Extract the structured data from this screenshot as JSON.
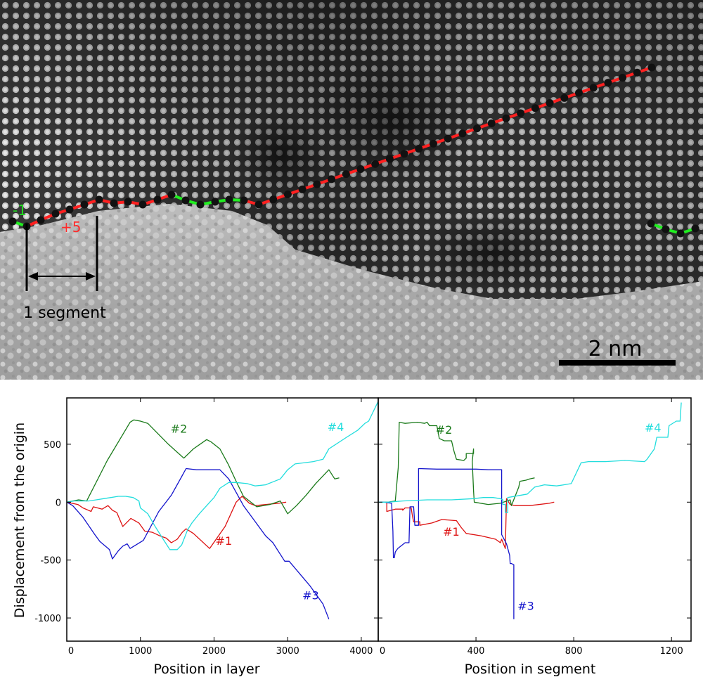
{
  "micrograph": {
    "segment_label": "1 segment",
    "scale_bar_label": "2 nm",
    "step_labels": [
      {
        "text": "-1",
        "color": "#22dd22"
      },
      {
        "text": "+5",
        "color": "#ff2a2a"
      }
    ],
    "palette": {
      "up_step": "#ff2020",
      "down_step": "#20ee20",
      "atom": "#111111"
    }
  },
  "chart_data": [
    {
      "type": "line",
      "xlabel": "Position in layer",
      "ylabel": "Displacement from the origin",
      "xlim": [
        0,
        4230
      ],
      "ylim": [
        -1200,
        900
      ],
      "xticks": [
        0,
        1000,
        2000,
        3000,
        4000
      ],
      "yticks": [
        500,
        0,
        -500,
        -1000
      ],
      "grid": false,
      "series": [
        {
          "name": "#1",
          "color": "#dd1111",
          "points": [
            [
              0,
              0
            ],
            [
              150,
              -20
            ],
            [
              220,
              -50
            ],
            [
              330,
              -80
            ],
            [
              360,
              -40
            ],
            [
              480,
              -60
            ],
            [
              560,
              -30
            ],
            [
              620,
              -70
            ],
            [
              680,
              -90
            ],
            [
              760,
              -210
            ],
            [
              870,
              -140
            ],
            [
              980,
              -180
            ],
            [
              1060,
              -250
            ],
            [
              1160,
              -260
            ],
            [
              1260,
              -290
            ],
            [
              1350,
              -310
            ],
            [
              1420,
              -350
            ],
            [
              1500,
              -320
            ],
            [
              1570,
              -260
            ],
            [
              1620,
              -230
            ],
            [
              1720,
              -270
            ],
            [
              1940,
              -400
            ],
            [
              2150,
              -210
            ],
            [
              2300,
              0
            ],
            [
              2380,
              50
            ],
            [
              2480,
              -10
            ],
            [
              2560,
              -30
            ],
            [
              2700,
              -20
            ],
            [
              2880,
              -10
            ],
            [
              2980,
              0
            ]
          ]
        },
        {
          "name": "#2",
          "color": "#1a7a1a",
          "points": [
            [
              0,
              0
            ],
            [
              160,
              20
            ],
            [
              270,
              10
            ],
            [
              550,
              360
            ],
            [
              860,
              690
            ],
            [
              910,
              710
            ],
            [
              1000,
              700
            ],
            [
              1100,
              680
            ],
            [
              1380,
              500
            ],
            [
              1590,
              380
            ],
            [
              1720,
              460
            ],
            [
              1900,
              540
            ],
            [
              1960,
              520
            ],
            [
              2080,
              460
            ],
            [
              2190,
              330
            ],
            [
              2300,
              180
            ],
            [
              2400,
              50
            ],
            [
              2580,
              -40
            ],
            [
              2760,
              -20
            ],
            [
              2900,
              10
            ],
            [
              3000,
              -100
            ],
            [
              3120,
              -30
            ],
            [
              3250,
              60
            ],
            [
              3380,
              160
            ],
            [
              3560,
              280
            ],
            [
              3640,
              200
            ],
            [
              3700,
              210
            ]
          ]
        },
        {
          "name": "#3",
          "color": "#1414cc",
          "points": [
            [
              0,
              0
            ],
            [
              80,
              -30
            ],
            [
              220,
              -130
            ],
            [
              380,
              -280
            ],
            [
              450,
              -340
            ],
            [
              580,
              -410
            ],
            [
              620,
              -490
            ],
            [
              700,
              -420
            ],
            [
              760,
              -380
            ],
            [
              820,
              -360
            ],
            [
              860,
              -400
            ],
            [
              1040,
              -330
            ],
            [
              1250,
              -80
            ],
            [
              1420,
              60
            ],
            [
              1560,
              220
            ],
            [
              1620,
              290
            ],
            [
              1760,
              280
            ],
            [
              2080,
              280
            ],
            [
              2200,
              200
            ],
            [
              2400,
              -30
            ],
            [
              2700,
              -290
            ],
            [
              2800,
              -350
            ],
            [
              2960,
              -510
            ],
            [
              3020,
              -510
            ],
            [
              3180,
              -630
            ],
            [
              3300,
              -720
            ],
            [
              3480,
              -880
            ],
            [
              3560,
              -1010
            ]
          ]
        },
        {
          "name": "#4",
          "color": "#22dddd",
          "points": [
            [
              0,
              0
            ],
            [
              100,
              10
            ],
            [
              200,
              10
            ],
            [
              300,
              10
            ],
            [
              400,
              20
            ],
            [
              500,
              30
            ],
            [
              600,
              40
            ],
            [
              700,
              50
            ],
            [
              800,
              50
            ],
            [
              900,
              40
            ],
            [
              980,
              10
            ],
            [
              1000,
              -50
            ],
            [
              1100,
              -100
            ],
            [
              1200,
              -210
            ],
            [
              1300,
              -310
            ],
            [
              1400,
              -410
            ],
            [
              1500,
              -410
            ],
            [
              1560,
              -370
            ],
            [
              1640,
              -240
            ],
            [
              1700,
              -180
            ],
            [
              1800,
              -100
            ],
            [
              1900,
              -30
            ],
            [
              2000,
              40
            ],
            [
              2080,
              120
            ],
            [
              2200,
              170
            ],
            [
              2300,
              170
            ],
            [
              2450,
              160
            ],
            [
              2560,
              140
            ],
            [
              2700,
              150
            ],
            [
              2900,
              200
            ],
            [
              3000,
              280
            ],
            [
              3100,
              330
            ],
            [
              3350,
              350
            ],
            [
              3480,
              370
            ],
            [
              3560,
              460
            ],
            [
              3800,
              560
            ],
            [
              3950,
              620
            ],
            [
              4050,
              680
            ],
            [
              4100,
              700
            ],
            [
              4230,
              870
            ]
          ]
        }
      ],
      "annotations": [
        {
          "text": "#2",
          "x": 1410,
          "y": 600,
          "color": "#1a7a1a"
        },
        {
          "text": "#4",
          "x": 3540,
          "y": 615,
          "color": "#22dddd"
        },
        {
          "text": "#1",
          "x": 2020,
          "y": -370,
          "color": "#dd1111"
        },
        {
          "text": "#3",
          "x": 3200,
          "y": -840,
          "color": "#1414cc"
        }
      ]
    },
    {
      "type": "line",
      "xlabel": "Position in segment",
      "ylabel": "",
      "xlim": [
        0,
        1280
      ],
      "ylim": [
        -1200,
        900
      ],
      "xticks": [
        0,
        400,
        800,
        1200
      ],
      "yticks": [
        500,
        0,
        -500,
        -1000
      ],
      "grid": false,
      "series": [
        {
          "name": "#1",
          "color": "#dd1111",
          "points": [
            [
              0,
              0
            ],
            [
              35,
              0
            ],
            [
              35,
              -80
            ],
            [
              70,
              -60
            ],
            [
              100,
              -60
            ],
            [
              100,
              -70
            ],
            [
              110,
              -50
            ],
            [
              135,
              -50
            ],
            [
              140,
              -120
            ],
            [
              145,
              -170
            ],
            [
              170,
              -170
            ],
            [
              170,
              -200
            ],
            [
              220,
              -180
            ],
            [
              260,
              -150
            ],
            [
              320,
              -160
            ],
            [
              340,
              -220
            ],
            [
              360,
              -270
            ],
            [
              420,
              -290
            ],
            [
              480,
              -320
            ],
            [
              500,
              -350
            ],
            [
              505,
              -320
            ],
            [
              520,
              -400
            ],
            [
              525,
              30
            ],
            [
              540,
              -20
            ],
            [
              560,
              -30
            ],
            [
              620,
              -30
            ],
            [
              700,
              -10
            ],
            [
              720,
              0
            ],
            [
              720,
              0
            ]
          ]
        },
        {
          "name": "#2",
          "color": "#1a7a1a",
          "points": [
            [
              0,
              0
            ],
            [
              40,
              0
            ],
            [
              70,
              10
            ],
            [
              82,
              300
            ],
            [
              86,
              690
            ],
            [
              110,
              680
            ],
            [
              160,
              690
            ],
            [
              190,
              680
            ],
            [
              200,
              690
            ],
            [
              210,
              660
            ],
            [
              240,
              660
            ],
            [
              250,
              550
            ],
            [
              270,
              530
            ],
            [
              300,
              530
            ],
            [
              310,
              440
            ],
            [
              320,
              370
            ],
            [
              350,
              360
            ],
            [
              360,
              380
            ],
            [
              360,
              420
            ],
            [
              390,
              420
            ],
            [
              390,
              460
            ],
            [
              385,
              350
            ],
            [
              390,
              100
            ],
            [
              393,
              0
            ],
            [
              450,
              -20
            ],
            [
              500,
              -10
            ],
            [
              540,
              20
            ],
            [
              545,
              -30
            ],
            [
              575,
              130
            ],
            [
              580,
              180
            ],
            [
              605,
              190
            ],
            [
              620,
              200
            ],
            [
              640,
              210
            ]
          ]
        },
        {
          "name": "#3",
          "color": "#1414cc",
          "points": [
            [
              0,
              0
            ],
            [
              25,
              0
            ],
            [
              55,
              -10
            ],
            [
              60,
              -250
            ],
            [
              62,
              -480
            ],
            [
              66,
              -480
            ],
            [
              70,
              -430
            ],
            [
              80,
              -400
            ],
            [
              110,
              -350
            ],
            [
              126,
              -350
            ],
            [
              130,
              -40
            ],
            [
              145,
              -40
            ],
            [
              150,
              -200
            ],
            [
              165,
              -200
            ],
            [
              165,
              290
            ],
            [
              240,
              285
            ],
            [
              300,
              285
            ],
            [
              400,
              285
            ],
            [
              450,
              280
            ],
            [
              500,
              280
            ],
            [
              505,
              280
            ],
            [
              505,
              -280
            ],
            [
              525,
              -360
            ],
            [
              538,
              -460
            ],
            [
              540,
              -530
            ],
            [
              545,
              -530
            ],
            [
              555,
              -540
            ],
            [
              555,
              -1010
            ]
          ]
        },
        {
          "name": "#4",
          "color": "#22dddd",
          "points": [
            [
              0,
              0
            ],
            [
              40,
              0
            ],
            [
              100,
              10
            ],
            [
              200,
              20
            ],
            [
              300,
              20
            ],
            [
              390,
              30
            ],
            [
              430,
              40
            ],
            [
              470,
              40
            ],
            [
              500,
              30
            ],
            [
              510,
              20
            ],
            [
              510,
              -20
            ],
            [
              520,
              -20
            ],
            [
              520,
              -90
            ],
            [
              530,
              -90
            ],
            [
              530,
              40
            ],
            [
              610,
              70
            ],
            [
              640,
              130
            ],
            [
              680,
              150
            ],
            [
              730,
              140
            ],
            [
              760,
              150
            ],
            [
              790,
              160
            ],
            [
              830,
              340
            ],
            [
              860,
              350
            ],
            [
              890,
              350
            ],
            [
              930,
              350
            ],
            [
              1010,
              360
            ],
            [
              1090,
              350
            ],
            [
              1100,
              370
            ],
            [
              1120,
              430
            ],
            [
              1130,
              460
            ],
            [
              1140,
              560
            ],
            [
              1185,
              560
            ],
            [
              1190,
              660
            ],
            [
              1220,
              700
            ],
            [
              1235,
              700
            ],
            [
              1240,
              860
            ]
          ]
        }
      ],
      "annotations": [
        {
          "text": "#2",
          "x": 235,
          "y": 590,
          "color": "#1a7a1a"
        },
        {
          "text": "#4",
          "x": 1090,
          "y": 610,
          "color": "#22dddd"
        },
        {
          "text": "#1",
          "x": 265,
          "y": -290,
          "color": "#dd1111"
        },
        {
          "text": "#3",
          "x": 570,
          "y": -930,
          "color": "#1414cc"
        }
      ]
    }
  ]
}
